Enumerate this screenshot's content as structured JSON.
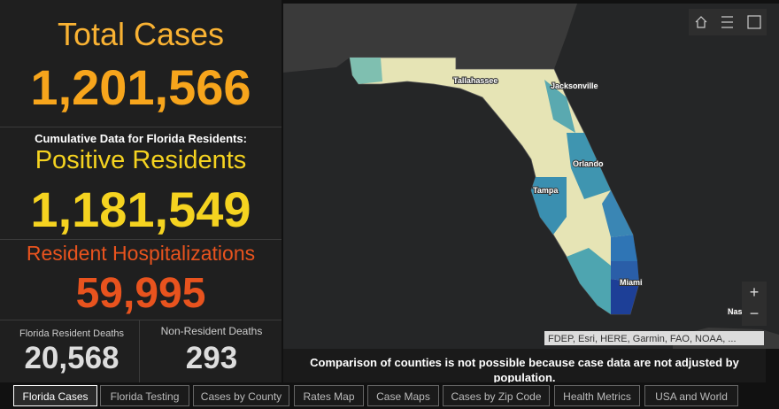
{
  "summary": {
    "total_cases": {
      "label": "Total Cases",
      "value": "1,201,566"
    },
    "note": "Cumulative Data for Florida Residents:",
    "positive_residents": {
      "label": "Positive Residents",
      "value": "1,181,549"
    },
    "hospitalizations": {
      "label": "Resident Hospitalizations",
      "value": "59,995"
    },
    "resident_deaths": {
      "label": "Florida Resident Deaths",
      "value": "20,568"
    },
    "non_resident_deaths": {
      "label": "Non-Resident Deaths",
      "value": "293"
    }
  },
  "map": {
    "cities": [
      "Tallahassee",
      "Jacksonville",
      "Orlando",
      "Tampa",
      "Miami",
      "Nas"
    ],
    "zoom_in": "+",
    "zoom_out": "−",
    "attribution": "FDEP, Esri, HERE, Garmin, FAO, NOAA, ...",
    "disclaimer": "Comparison of counties is not possible because case data are not adjusted by population."
  },
  "tabs": [
    "Florida Cases",
    "Florida Testing",
    "Cases by County",
    "Rates Map",
    "Case Maps",
    "Cases by Zip Code",
    "Health Metrics",
    "USA and World"
  ]
}
